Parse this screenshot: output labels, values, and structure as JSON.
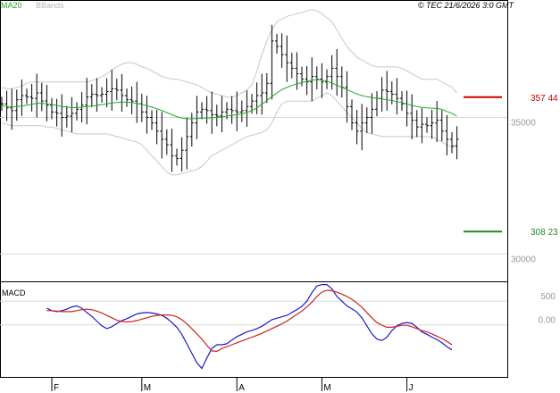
{
  "header": {
    "ma_label": "MA20",
    "bb_label": "BBands",
    "credit": "© TEC 21/6/2026 3:0 GMT"
  },
  "colors": {
    "ma": "#22aa22",
    "bb": "#c8c8c8",
    "bars": "#000000",
    "grid": "#d8d8d8",
    "resistance": "#cc0000",
    "support": "#228822",
    "macd": "#1a1acc",
    "signal": "#cc2222"
  },
  "chart_data": [
    {
      "type": "ohlc",
      "title": "",
      "y_ticks": [
        {
          "value": 35000,
          "label": "35000"
        },
        {
          "value": 30000,
          "label": "30000"
        }
      ],
      "ylim": [
        29000,
        39300
      ],
      "x_ticks": [
        {
          "index": 10,
          "label": "F"
        },
        {
          "index": 28,
          "label": "M"
        },
        {
          "index": 47,
          "label": "A"
        },
        {
          "index": 64,
          "label": "M"
        },
        {
          "index": 81,
          "label": "J"
        }
      ],
      "levels": [
        {
          "name": "resistance",
          "value": 35744,
          "label": "357 44"
        },
        {
          "name": "support",
          "value": 30823,
          "label": "308 23"
        }
      ],
      "close": [
        35500,
        35350,
        35250,
        35650,
        35800,
        35750,
        35700,
        35900,
        35600,
        35450,
        35200,
        35150,
        35000,
        35050,
        35150,
        35300,
        35450,
        35750,
        35850,
        35800,
        35850,
        35950,
        36050,
        36000,
        35800,
        35650,
        35600,
        35500,
        35200,
        35000,
        34800,
        34500,
        34200,
        34000,
        33600,
        33500,
        33800,
        34300,
        34800,
        35200,
        35300,
        35250,
        35100,
        35050,
        35200,
        35300,
        35250,
        35200,
        35250,
        35400,
        35600,
        35800,
        35900,
        36250,
        37800,
        37600,
        37300,
        37000,
        36800,
        36600,
        36400,
        36300,
        36500,
        36400,
        36300,
        36500,
        36800,
        36500,
        36100,
        35400,
        34800,
        34500,
        34800,
        35000,
        35300,
        35700,
        36000,
        35950,
        35850,
        35700,
        35500,
        35150,
        34900,
        34650,
        34750,
        34700,
        34800,
        34900,
        34500,
        34200,
        33950,
        34200
      ],
      "ma20": [
        35450,
        35400,
        35380,
        35400,
        35420,
        35450,
        35480,
        35520,
        35520,
        35500,
        35470,
        35440,
        35400,
        35380,
        35360,
        35360,
        35380,
        35400,
        35420,
        35440,
        35470,
        35500,
        35530,
        35550,
        35560,
        35560,
        35550,
        35520,
        35480,
        35430,
        35380,
        35320,
        35250,
        35180,
        35100,
        35030,
        34980,
        34950,
        34950,
        34960,
        34970,
        34980,
        34990,
        35000,
        35020,
        35050,
        35080,
        35100,
        35130,
        35180,
        35250,
        35350,
        35480,
        35620,
        35760,
        35900,
        36020,
        36100,
        36170,
        36230,
        36280,
        36320,
        36360,
        36380,
        36370,
        36330,
        36260,
        36180,
        36100,
        36020,
        35940,
        35860,
        35800,
        35760,
        35730,
        35700,
        35680,
        35650,
        35620,
        35580,
        35540,
        35490,
        35440,
        35400,
        35370,
        35350,
        35340,
        35330,
        35300,
        35220,
        35150,
        35050
      ],
      "bb_upper": [
        36100,
        36050,
        36050,
        36100,
        36150,
        36250,
        36300,
        36300,
        36300,
        36300,
        36300,
        36300,
        36300,
        36300,
        36300,
        36300,
        36300,
        36300,
        36350,
        36400,
        36500,
        36600,
        36750,
        36850,
        36950,
        37000,
        37000,
        36950,
        36850,
        36800,
        36700,
        36600,
        36500,
        36450,
        36400,
        36400,
        36350,
        36300,
        36250,
        36200,
        36100,
        36000,
        35900,
        35850,
        35800,
        35750,
        35750,
        35800,
        35900,
        36000,
        36200,
        36700,
        37300,
        37800,
        38200,
        38500,
        38600,
        38700,
        38750,
        38800,
        38850,
        38900,
        38950,
        38900,
        38800,
        38650,
        38500,
        38200,
        37900,
        37600,
        37400,
        37200,
        37100,
        37000,
        36900,
        36850,
        36850,
        36850,
        36850,
        36850,
        36800,
        36700,
        36600,
        36500,
        36400,
        36400,
        36400,
        36400,
        36300,
        36200,
        36100,
        35900
      ],
      "bb_lower": [
        34800,
        34750,
        34700,
        34700,
        34700,
        34700,
        34700,
        34700,
        34700,
        34650,
        34650,
        34600,
        34550,
        34500,
        34450,
        34400,
        34400,
        34400,
        34400,
        34400,
        34400,
        34400,
        34350,
        34300,
        34250,
        34200,
        34150,
        34100,
        34000,
        33800,
        33600,
        33400,
        33200,
        33000,
        32900,
        32900,
        32950,
        33000,
        33050,
        33100,
        33200,
        33400,
        33600,
        33700,
        33800,
        33900,
        34000,
        34100,
        34200,
        34300,
        34350,
        34400,
        34450,
        34550,
        34800,
        35200,
        35500,
        35600,
        35600,
        35600,
        35600,
        35600,
        35600,
        35700,
        35800,
        35900,
        35800,
        35600,
        35400,
        35200,
        35000,
        34800,
        34600,
        34450,
        34400,
        34350,
        34300,
        34300,
        34300,
        34300,
        34300,
        34300,
        34300,
        34300,
        34300,
        34300,
        34300,
        34200,
        34100,
        34000,
        33900,
        34000
      ]
    },
    {
      "type": "line",
      "title": "MACD",
      "y_ticks": [
        {
          "value": 500,
          "label": "500"
        },
        {
          "value": 0,
          "label": "0.00"
        }
      ],
      "ylim": [
        -1100,
        900
      ],
      "series": [
        {
          "values": [
            350,
            300,
            280,
            300,
            330,
            380,
            400,
            350,
            260,
            180,
            80,
            -20,
            -80,
            -40,
            30,
            90,
            130,
            180,
            230,
            250,
            260,
            250,
            230,
            200,
            140,
            50,
            -50,
            -200,
            -400,
            -600,
            -800,
            -920,
            -700,
            -500,
            -420,
            -420,
            -400,
            -320,
            -250,
            -200,
            -150,
            -120,
            -80,
            -30,
            40,
            110,
            140,
            170,
            200,
            260,
            320,
            390,
            500,
            680,
            820,
            850,
            850,
            760,
            600,
            500,
            400,
            340,
            270,
            150,
            -20,
            -190,
            -300,
            -330,
            -260,
            -120,
            -20,
            30,
            50,
            30,
            -50,
            -150,
            -200,
            -260,
            -310,
            -380,
            -460,
            -530
          ],
          "color": "macd"
        },
        {
          "values": [
            300,
            300,
            290,
            280,
            280,
            280,
            300,
            320,
            330,
            320,
            290,
            250,
            200,
            150,
            100,
            70,
            60,
            70,
            90,
            120,
            150,
            180,
            200,
            210,
            210,
            200,
            170,
            110,
            20,
            -80,
            -190,
            -300,
            -430,
            -550,
            -560,
            -500,
            -460,
            -420,
            -380,
            -340,
            -300,
            -260,
            -220,
            -180,
            -130,
            -80,
            -30,
            20,
            80,
            150,
            220,
            290,
            380,
            480,
            600,
            690,
            730,
            720,
            690,
            650,
            600,
            540,
            460,
            370,
            260,
            150,
            50,
            -10,
            -50,
            -50,
            -30,
            -10,
            -10,
            -40,
            -80,
            -120,
            -150,
            -190,
            -240,
            -290,
            -350,
            -420
          ],
          "color": "signal"
        }
      ]
    }
  ]
}
